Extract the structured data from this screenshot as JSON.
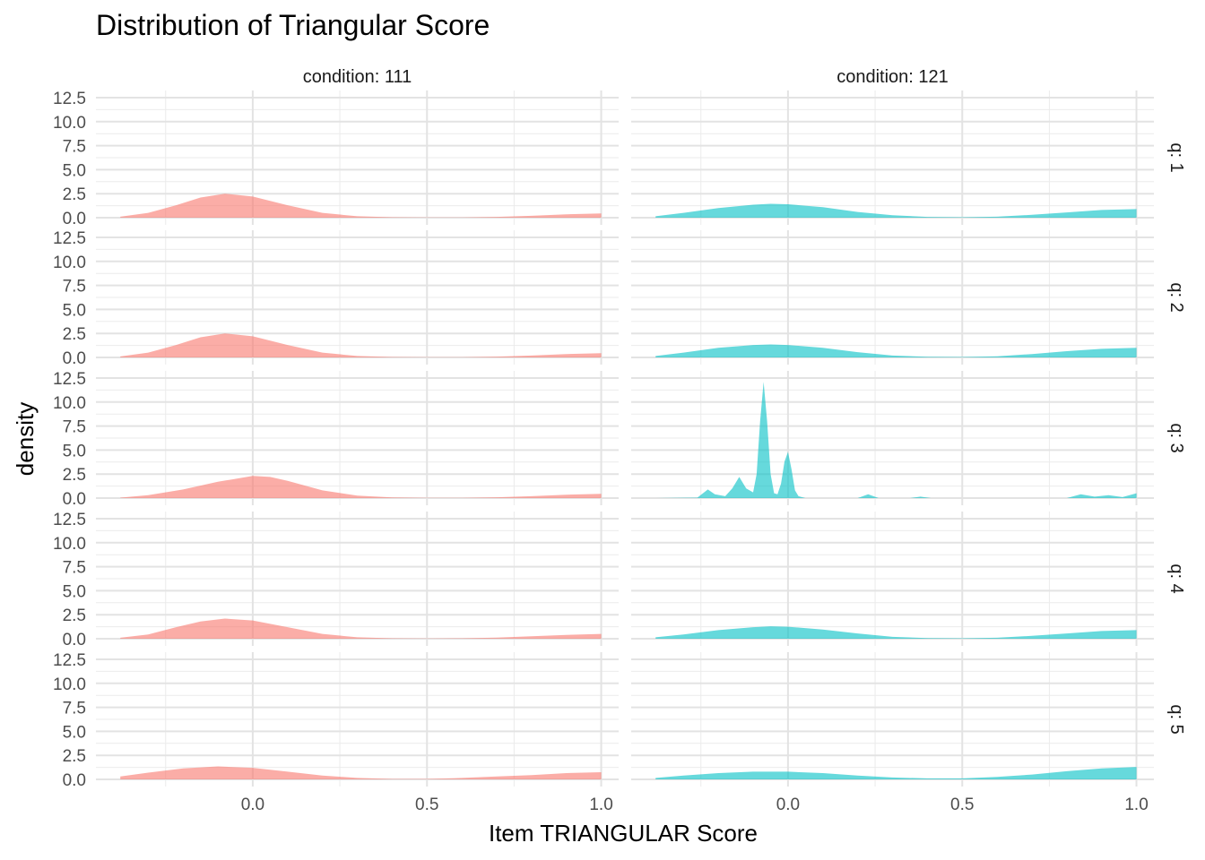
{
  "chart_data": {
    "type": "area",
    "subtype": "faceted density",
    "title": "Distribution of Triangular Score",
    "xlabel": "Item TRIANGULAR Score",
    "ylabel": "density",
    "xlim": [
      -0.45,
      1.05
    ],
    "ylim": [
      0,
      12.5
    ],
    "x_ticks": [
      0.0,
      0.5,
      1.0
    ],
    "x_tick_labels": [
      "0.0",
      "0.5",
      "1.0"
    ],
    "y_ticks": [
      0,
      2.5,
      5,
      7.5,
      10,
      12.5
    ],
    "y_tick_labels": [
      "0.0",
      "2.5",
      "5.0",
      "7.5",
      "10.0",
      "12.5"
    ],
    "grid": true,
    "legend": "none",
    "columns": [
      {
        "label": "condition: 111",
        "color": "#F8766D"
      },
      {
        "label": "condition: 121",
        "color": "#00BFC4"
      }
    ],
    "rows": [
      {
        "label": "q: 1"
      },
      {
        "label": "q: 2"
      },
      {
        "label": "q: 3"
      },
      {
        "label": "q: 4"
      },
      {
        "label": "q: 5"
      }
    ],
    "panels": [
      {
        "row": 0,
        "col": 0,
        "x": [
          -0.38,
          -0.3,
          -0.22,
          -0.15,
          -0.08,
          0.0,
          0.1,
          0.2,
          0.3,
          0.4,
          0.5,
          0.6,
          0.7,
          0.8,
          0.9,
          1.0
        ],
        "y": [
          0.1,
          0.5,
          1.3,
          2.1,
          2.5,
          2.2,
          1.3,
          0.5,
          0.15,
          0.05,
          0.02,
          0.03,
          0.08,
          0.2,
          0.35,
          0.45
        ]
      },
      {
        "row": 0,
        "col": 1,
        "x": [
          -0.38,
          -0.3,
          -0.2,
          -0.1,
          -0.05,
          0.0,
          0.1,
          0.2,
          0.3,
          0.4,
          0.5,
          0.6,
          0.7,
          0.8,
          0.9,
          1.0
        ],
        "y": [
          0.15,
          0.5,
          1.0,
          1.35,
          1.45,
          1.4,
          1.1,
          0.6,
          0.25,
          0.08,
          0.05,
          0.1,
          0.3,
          0.55,
          0.8,
          0.9
        ]
      },
      {
        "row": 1,
        "col": 0,
        "x": [
          -0.38,
          -0.3,
          -0.22,
          -0.15,
          -0.08,
          0.0,
          0.1,
          0.2,
          0.3,
          0.4,
          0.5,
          0.6,
          0.7,
          0.8,
          0.9,
          1.0
        ],
        "y": [
          0.1,
          0.5,
          1.3,
          2.1,
          2.5,
          2.2,
          1.3,
          0.5,
          0.15,
          0.05,
          0.02,
          0.03,
          0.08,
          0.2,
          0.35,
          0.45
        ]
      },
      {
        "row": 1,
        "col": 1,
        "x": [
          -0.38,
          -0.3,
          -0.2,
          -0.1,
          -0.05,
          0.0,
          0.1,
          0.2,
          0.3,
          0.4,
          0.5,
          0.6,
          0.7,
          0.8,
          0.9,
          1.0
        ],
        "y": [
          0.15,
          0.5,
          1.0,
          1.3,
          1.35,
          1.3,
          1.0,
          0.55,
          0.2,
          0.07,
          0.05,
          0.12,
          0.35,
          0.65,
          0.9,
          1.0
        ]
      },
      {
        "row": 2,
        "col": 0,
        "x": [
          -0.38,
          -0.3,
          -0.2,
          -0.1,
          0.0,
          0.05,
          0.1,
          0.2,
          0.3,
          0.4,
          0.5,
          0.6,
          0.7,
          0.8,
          0.9,
          1.0
        ],
        "y": [
          0.05,
          0.3,
          0.9,
          1.7,
          2.3,
          2.2,
          1.8,
          0.8,
          0.25,
          0.07,
          0.02,
          0.03,
          0.08,
          0.2,
          0.35,
          0.45
        ]
      },
      {
        "row": 2,
        "col": 1,
        "x": [
          -0.38,
          -0.26,
          -0.23,
          -0.21,
          -0.18,
          -0.16,
          -0.14,
          -0.12,
          -0.1,
          -0.09,
          -0.08,
          -0.07,
          -0.06,
          -0.05,
          -0.04,
          -0.03,
          -0.02,
          -0.01,
          0.0,
          0.01,
          0.02,
          0.03,
          0.05,
          0.2,
          0.23,
          0.26,
          0.35,
          0.38,
          0.41,
          0.8,
          0.84,
          0.88,
          0.92,
          0.96,
          1.0
        ],
        "y": [
          0.0,
          0.05,
          0.9,
          0.4,
          0.2,
          1.0,
          2.2,
          1.0,
          0.6,
          2.5,
          8.0,
          12.1,
          8.0,
          2.5,
          0.5,
          0.4,
          1.5,
          3.8,
          4.8,
          3.0,
          0.8,
          0.2,
          0.0,
          0.0,
          0.4,
          0.0,
          0.0,
          0.15,
          0.0,
          0.0,
          0.4,
          0.15,
          0.3,
          0.1,
          0.5
        ]
      },
      {
        "row": 3,
        "col": 0,
        "x": [
          -0.38,
          -0.3,
          -0.22,
          -0.15,
          -0.08,
          0.0,
          0.1,
          0.2,
          0.3,
          0.4,
          0.5,
          0.6,
          0.7,
          0.8,
          0.9,
          1.0
        ],
        "y": [
          0.1,
          0.45,
          1.2,
          1.8,
          2.1,
          1.9,
          1.2,
          0.5,
          0.15,
          0.05,
          0.02,
          0.05,
          0.12,
          0.25,
          0.4,
          0.5
        ]
      },
      {
        "row": 3,
        "col": 1,
        "x": [
          -0.38,
          -0.3,
          -0.2,
          -0.1,
          -0.05,
          0.0,
          0.1,
          0.2,
          0.3,
          0.4,
          0.5,
          0.6,
          0.7,
          0.8,
          0.9,
          1.0
        ],
        "y": [
          0.15,
          0.45,
          0.9,
          1.2,
          1.3,
          1.25,
          0.95,
          0.55,
          0.2,
          0.07,
          0.05,
          0.1,
          0.3,
          0.55,
          0.8,
          0.9
        ]
      },
      {
        "row": 4,
        "col": 0,
        "x": [
          -0.38,
          -0.3,
          -0.2,
          -0.1,
          0.0,
          0.1,
          0.2,
          0.3,
          0.4,
          0.5,
          0.6,
          0.7,
          0.8,
          0.9,
          1.0
        ],
        "y": [
          0.3,
          0.7,
          1.15,
          1.35,
          1.2,
          0.8,
          0.4,
          0.15,
          0.05,
          0.05,
          0.15,
          0.3,
          0.45,
          0.65,
          0.75
        ]
      },
      {
        "row": 4,
        "col": 1,
        "x": [
          -0.38,
          -0.3,
          -0.2,
          -0.1,
          0.0,
          0.1,
          0.2,
          0.3,
          0.4,
          0.5,
          0.6,
          0.7,
          0.8,
          0.9,
          1.0
        ],
        "y": [
          0.15,
          0.4,
          0.65,
          0.8,
          0.8,
          0.65,
          0.4,
          0.2,
          0.1,
          0.1,
          0.25,
          0.5,
          0.85,
          1.15,
          1.3
        ]
      }
    ]
  }
}
